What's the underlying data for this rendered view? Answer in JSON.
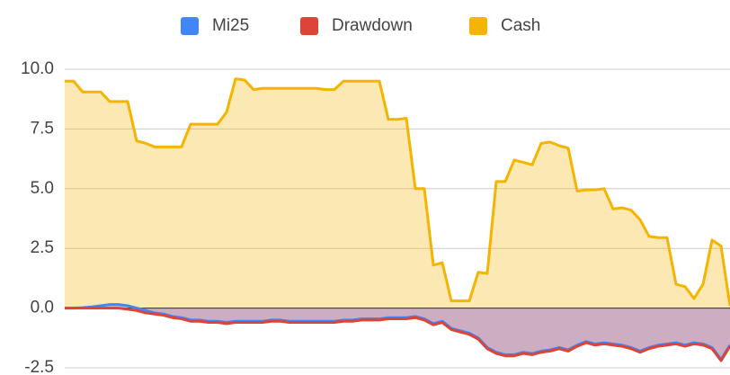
{
  "chart_data": {
    "type": "area",
    "ylim": [
      -2.5,
      10
    ],
    "yticks": [
      {
        "value": -2.5,
        "label": "-2.5"
      },
      {
        "value": 0,
        "label": "0.0"
      },
      {
        "value": 2.5,
        "label": "2.5"
      },
      {
        "value": 5,
        "label": "5.0"
      },
      {
        "value": 7.5,
        "label": "7.5"
      },
      {
        "value": 10,
        "label": "10.0"
      }
    ],
    "grid": true,
    "legend": "top",
    "series": [
      {
        "name": "Mi25",
        "color": "#4285f4",
        "values": [
          0,
          0,
          0.02,
          0.05,
          0.1,
          0.15,
          0.15,
          0.1,
          0,
          -0.1,
          -0.2,
          -0.25,
          -0.35,
          -0.4,
          -0.5,
          -0.5,
          -0.55,
          -0.55,
          -0.6,
          -0.55,
          -0.55,
          -0.55,
          -0.55,
          -0.5,
          -0.5,
          -0.55,
          -0.55,
          -0.55,
          -0.55,
          -0.55,
          -0.55,
          -0.5,
          -0.5,
          -0.45,
          -0.45,
          -0.45,
          -0.4,
          -0.4,
          -0.4,
          -0.35,
          -0.45,
          -0.65,
          -0.55,
          -0.85,
          -0.95,
          -1.05,
          -1.25,
          -1.65,
          -1.85,
          -1.95,
          -1.95,
          -1.85,
          -1.9,
          -1.8,
          -1.75,
          -1.65,
          -1.75,
          -1.55,
          -1.4,
          -1.5,
          -1.45,
          -1.5,
          -1.55,
          -1.65,
          -1.8,
          -1.65,
          -1.55,
          -1.5,
          -1.45,
          -1.55,
          -1.45,
          -1.5,
          -1.65,
          -2.15,
          -1.55
        ]
      },
      {
        "name": "Drawdown",
        "color": "#db4437",
        "values": [
          0,
          0,
          0,
          0,
          0,
          0,
          0,
          -0.05,
          -0.1,
          -0.2,
          -0.25,
          -0.3,
          -0.4,
          -0.45,
          -0.55,
          -0.55,
          -0.6,
          -0.6,
          -0.65,
          -0.6,
          -0.6,
          -0.6,
          -0.6,
          -0.55,
          -0.55,
          -0.6,
          -0.6,
          -0.6,
          -0.6,
          -0.6,
          -0.6,
          -0.55,
          -0.55,
          -0.5,
          -0.5,
          -0.5,
          -0.45,
          -0.45,
          -0.45,
          -0.4,
          -0.5,
          -0.7,
          -0.6,
          -0.9,
          -1,
          -1.1,
          -1.3,
          -1.7,
          -1.9,
          -2,
          -2,
          -1.9,
          -1.95,
          -1.85,
          -1.8,
          -1.7,
          -1.8,
          -1.6,
          -1.45,
          -1.55,
          -1.5,
          -1.55,
          -1.6,
          -1.7,
          -1.85,
          -1.7,
          -1.6,
          -1.55,
          -1.5,
          -1.6,
          -1.5,
          -1.55,
          -1.7,
          -2.2,
          -1.6
        ]
      },
      {
        "name": "Cash",
        "color": "#f4b400",
        "values": [
          9.5,
          9.5,
          9.05,
          9.05,
          9.05,
          8.65,
          8.65,
          8.65,
          7,
          6.9,
          6.75,
          6.75,
          6.75,
          6.75,
          7.7,
          7.7,
          7.7,
          7.7,
          8.2,
          9.6,
          9.55,
          9.15,
          9.2,
          9.2,
          9.2,
          9.2,
          9.2,
          9.2,
          9.2,
          9.15,
          9.15,
          9.5,
          9.5,
          9.5,
          9.5,
          9.5,
          7.9,
          7.9,
          7.95,
          5,
          5,
          1.8,
          1.9,
          0.3,
          0.3,
          0.3,
          1.5,
          1.45,
          5.3,
          5.3,
          6.2,
          6.1,
          6,
          6.9,
          6.95,
          6.8,
          6.7,
          4.9,
          4.95,
          4.95,
          5,
          4.15,
          4.2,
          4.1,
          3.7,
          3,
          2.95,
          2.95,
          1,
          0.9,
          0.4,
          1,
          2.85,
          2.6,
          0.1
        ]
      }
    ]
  }
}
